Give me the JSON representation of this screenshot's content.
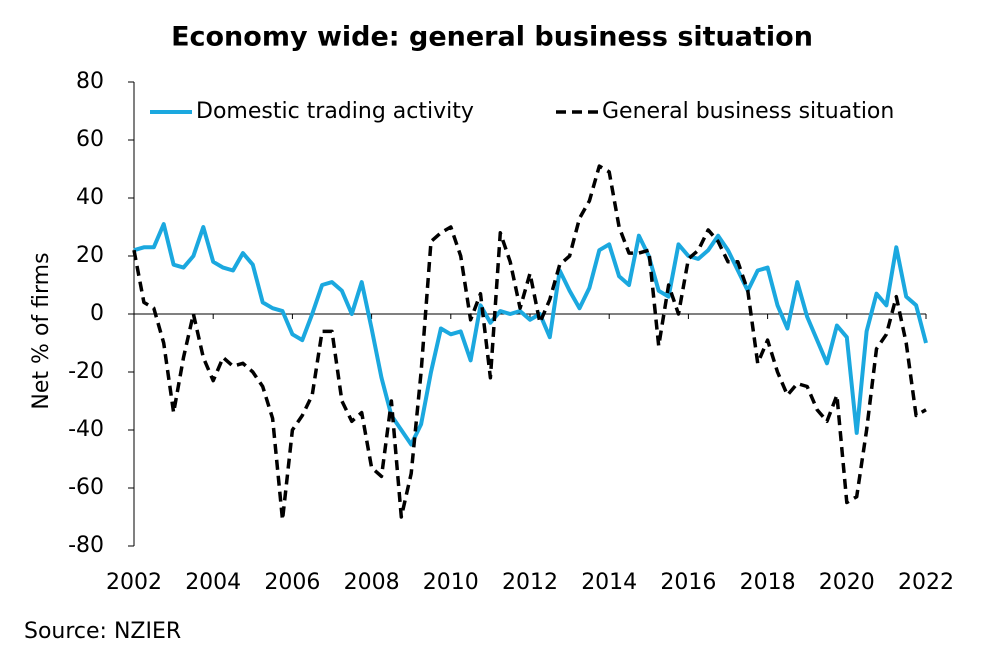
{
  "chart_data": {
    "type": "line",
    "title": "Economy wide: general business situation",
    "y_label": "Net % of firms",
    "source": "Source: NZIER",
    "legend": "top",
    "xlim": [
      2002,
      2022
    ],
    "xticks": [
      2002,
      2004,
      2006,
      2008,
      2010,
      2012,
      2014,
      2016,
      2018,
      2020,
      2022
    ],
    "ylim": [
      -80,
      80
    ],
    "yticks": [
      -80,
      -60,
      -40,
      -20,
      0,
      20,
      40,
      60,
      80
    ],
    "x": [
      2002,
      2002.25,
      2002.5,
      2002.75,
      2003,
      2003.25,
      2003.5,
      2003.75,
      2004,
      2004.25,
      2004.5,
      2004.75,
      2005,
      2005.25,
      2005.5,
      2005.75,
      2006,
      2006.25,
      2006.5,
      2006.75,
      2007,
      2007.25,
      2007.5,
      2007.75,
      2008,
      2008.25,
      2008.5,
      2008.75,
      2009,
      2009.25,
      2009.5,
      2009.75,
      2010,
      2010.25,
      2010.5,
      2010.75,
      2011,
      2011.25,
      2011.5,
      2011.75,
      2012,
      2012.25,
      2012.5,
      2012.75,
      2013,
      2013.25,
      2013.5,
      2013.75,
      2014,
      2014.25,
      2014.5,
      2014.75,
      2015,
      2015.25,
      2015.5,
      2015.75,
      2016,
      2016.25,
      2016.5,
      2016.75,
      2017,
      2017.25,
      2017.5,
      2017.75,
      2018,
      2018.25,
      2018.5,
      2018.75,
      2019,
      2019.25,
      2019.5,
      2019.75,
      2020,
      2020.25,
      2020.5,
      2020.75,
      2021,
      2021.25,
      2021.5,
      2021.75,
      2022
    ],
    "series": [
      {
        "name": "Domestic trading activity",
        "color": "#1ba8df",
        "dashed": false,
        "values": [
          22,
          23,
          23,
          31,
          17,
          16,
          20,
          30,
          18,
          16,
          15,
          21,
          17,
          4,
          2,
          1,
          -7,
          -9,
          0,
          10,
          11,
          8,
          0,
          11,
          -5,
          -22,
          -35,
          -40,
          -45,
          -38,
          -20,
          -5,
          -7,
          -6,
          -16,
          3,
          -3,
          1,
          0,
          1,
          -2,
          0,
          -8,
          15,
          8,
          2,
          9,
          22,
          24,
          13,
          10,
          27,
          20,
          8,
          6,
          24,
          20,
          19,
          22,
          27,
          22,
          15,
          8,
          15,
          16,
          3,
          -5,
          11,
          -1,
          -9,
          -17,
          -4,
          -8,
          -41,
          -6,
          7,
          3,
          23,
          6,
          3,
          -10
        ]
      },
      {
        "name": "General business situation",
        "color": "#000000",
        "dashed": true,
        "values": [
          22,
          4,
          2,
          -10,
          -34,
          -15,
          0,
          -15,
          -23,
          -15,
          -18,
          -17,
          -20,
          -25,
          -36,
          -71,
          -40,
          -35,
          -28,
          -6,
          -6,
          -30,
          -37,
          -34,
          -53,
          -56,
          -30,
          -70,
          -55,
          -20,
          25,
          28,
          30,
          20,
          -2,
          7,
          -22,
          28,
          18,
          2,
          14,
          -3,
          5,
          17,
          20,
          33,
          39,
          51,
          49,
          30,
          21,
          21,
          22,
          -11,
          10,
          0,
          19,
          22,
          29,
          25,
          18,
          18,
          8,
          -17,
          -9,
          -20,
          -28,
          -24,
          -25,
          -33,
          -37,
          -28,
          -65,
          -63,
          -40,
          -12,
          -7,
          6,
          -10,
          -35,
          -33
        ]
      }
    ]
  }
}
